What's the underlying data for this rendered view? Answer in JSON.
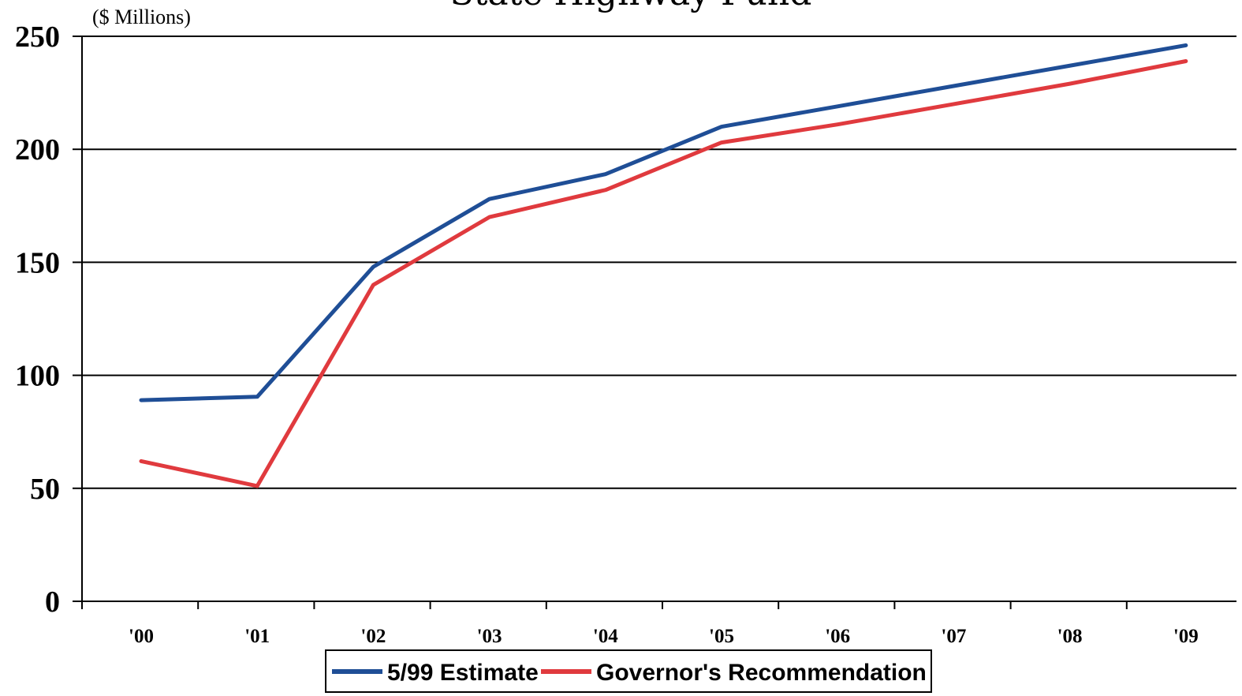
{
  "chart_data": {
    "type": "line",
    "title": "State Highway Fund",
    "ylabel": "($ Millions)",
    "xlabel": "",
    "categories": [
      "'00",
      "'01",
      "'02",
      "'03",
      "'04",
      "'05",
      "'06",
      "'07",
      "'08",
      "'09"
    ],
    "ylim": [
      0,
      250
    ],
    "yticks": [
      "0",
      "50",
      "100",
      "150",
      "200",
      "250"
    ],
    "grid": true,
    "legend_position": "bottom",
    "series": [
      {
        "name": "5/99 Estimate",
        "color": "#1f4e96",
        "values": [
          89,
          90.5,
          148,
          178,
          189,
          210,
          219,
          228,
          237,
          246
        ]
      },
      {
        "name": "Governor's Recommendation",
        "color": "#e03a3e",
        "values": [
          62,
          51,
          140,
          170,
          182,
          203,
          211,
          220,
          229,
          239
        ]
      }
    ]
  }
}
